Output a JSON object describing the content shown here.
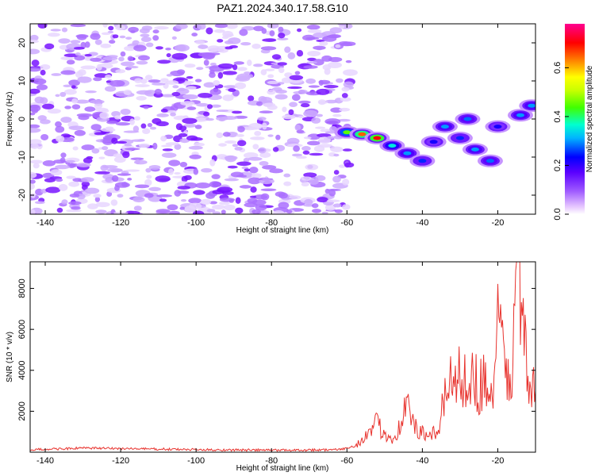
{
  "chart_data": [
    {
      "type": "heatmap",
      "title": "PAZ1.2024.340.17.58.G10",
      "xlabel": "Height of straight line (km)",
      "ylabel": "Frequency (Hz)",
      "xlim": [
        -144,
        -10
      ],
      "ylim": [
        -25,
        25
      ],
      "xticks": [
        -140,
        -120,
        -100,
        -80,
        -60,
        -40,
        -20
      ],
      "yticks": [
        -20,
        -10,
        0,
        10,
        20
      ],
      "colorbar": {
        "label": "Normalized spectral amplitude",
        "range": [
          0,
          0.78
        ],
        "ticks": [
          0.0,
          0.2,
          0.4,
          0.6
        ],
        "tick_labels": [
          "0.0",
          "0.2",
          "0.4",
          "0.6"
        ],
        "colormap": "rainbow (white-violet-blue-cyan-green-yellow-red-magenta)"
      },
      "noise_region_x": [
        -144,
        -59
      ],
      "signal_ridge": [
        {
          "x": -60,
          "y": -3.5,
          "amp": 0.45
        },
        {
          "x": -56,
          "y": -4.0,
          "amp": 0.65
        },
        {
          "x": -52,
          "y": -5.0,
          "amp": 0.7
        },
        {
          "x": -48,
          "y": -7.0,
          "amp": 0.35
        },
        {
          "x": -44,
          "y": -9.0,
          "amp": 0.3
        },
        {
          "x": -40,
          "y": -11.0,
          "amp": 0.25
        },
        {
          "x": -37,
          "y": -6.0,
          "amp": 0.22
        },
        {
          "x": -34,
          "y": -2.0,
          "amp": 0.3
        },
        {
          "x": -30,
          "y": -5.0,
          "amp": 0.25
        },
        {
          "x": -26,
          "y": -8.0,
          "amp": 0.3
        },
        {
          "x": -22,
          "y": -11.0,
          "amp": 0.28
        },
        {
          "x": -28,
          "y": 0.0,
          "amp": 0.28
        },
        {
          "x": -20,
          "y": -2.0,
          "amp": 0.22
        },
        {
          "x": -14,
          "y": 1.0,
          "amp": 0.3
        },
        {
          "x": -11,
          "y": 3.5,
          "amp": 0.3
        }
      ]
    },
    {
      "type": "line",
      "xlabel": "Height of straight line (km)",
      "ylabel": "SNR (10 * v/v)",
      "xlim": [
        -144,
        -10
      ],
      "ylim": [
        0,
        9300
      ],
      "xticks": [
        -140,
        -120,
        -100,
        -80,
        -60,
        -40,
        -20
      ],
      "yticks": [
        2000,
        4000,
        6000,
        8000
      ],
      "color": "#e8332e",
      "series": [
        {
          "x": [
            -144,
            -130,
            -120,
            -100,
            -80,
            -62,
            -58,
            -56,
            -53,
            -52,
            -50,
            -48,
            -46,
            -45,
            -44,
            -43,
            -42,
            -40,
            -38,
            -36,
            -34,
            -33,
            -31,
            -29,
            -27,
            -25,
            -23,
            -21,
            -20,
            -18,
            -16,
            -15,
            -14,
            -13,
            -12,
            -10
          ],
          "y": [
            120,
            200,
            180,
            120,
            100,
            120,
            300,
            600,
            1100,
            1400,
            900,
            700,
            1200,
            2100,
            2300,
            1700,
            1200,
            900,
            700,
            1100,
            2500,
            4100,
            3400,
            3900,
            3600,
            3300,
            3500,
            2700,
            6500,
            3800,
            4200,
            8800,
            9300,
            5700,
            2800,
            3000
          ]
        }
      ]
    }
  ]
}
